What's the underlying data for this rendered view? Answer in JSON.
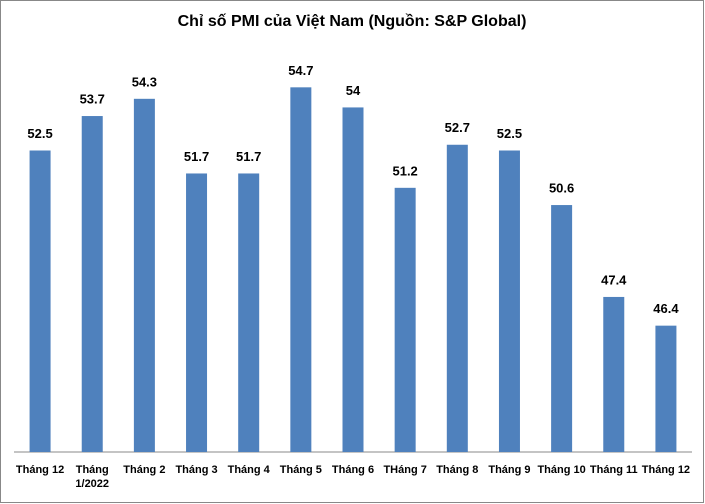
{
  "chart_data": {
    "type": "bar",
    "title": "Chỉ số PMI của Việt Nam (Nguồn: S&P Global)",
    "categories": [
      "Tháng 12",
      "Tháng 1/2022",
      "Tháng 2",
      "Tháng 3",
      "Tháng 4",
      "Tháng 5",
      "Tháng 6",
      "THáng 7",
      "Tháng 8",
      "Tháng 9",
      "Tháng 10",
      "Tháng 11",
      "Tháng 12"
    ],
    "values": [
      52.5,
      53.7,
      54.3,
      51.7,
      51.7,
      54.7,
      54,
      51.2,
      52.7,
      52.5,
      50.6,
      47.4,
      46.4
    ],
    "color": "#4f81bd",
    "ylim": [
      42,
      56
    ]
  }
}
